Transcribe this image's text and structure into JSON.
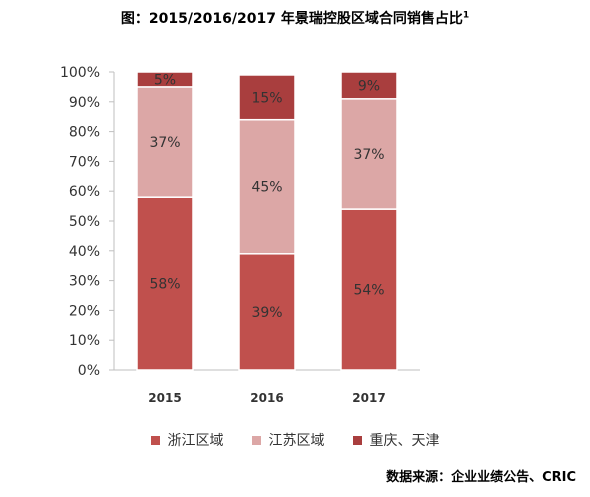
{
  "header": {
    "title": "图：2015/2016/2017 年景瑞控股区域合同销售占比",
    "title_superscript": "1"
  },
  "source": "数据来源：企业业绩公告、CRIC",
  "colors": {
    "zhejiang": "#c0504d",
    "jiangsu": "#dca7a6",
    "chongqing_tianjin": "#a93e3e"
  },
  "chart_data": {
    "type": "bar",
    "stacked": true,
    "title": "图：2015/2016/2017 年景瑞控股区域合同销售占比",
    "categories": [
      "2015",
      "2016",
      "2017"
    ],
    "series": [
      {
        "name": "浙江区域",
        "values": [
          58,
          39,
          54
        ],
        "labels": [
          "58%",
          "39%",
          "54%"
        ]
      },
      {
        "name": "江苏区域",
        "values": [
          37,
          45,
          37
        ],
        "labels": [
          "37%",
          "45%",
          "37%"
        ]
      },
      {
        "name": "重庆、天津",
        "values": [
          5,
          15,
          9
        ],
        "labels": [
          "5%",
          "15%",
          "9%"
        ]
      }
    ],
    "ylim": [
      0,
      100
    ],
    "yticks": [
      "0%",
      "10%",
      "20%",
      "30%",
      "40%",
      "50%",
      "60%",
      "70%",
      "80%",
      "90%",
      "100%"
    ],
    "grid": false,
    "legend": "bottom"
  }
}
